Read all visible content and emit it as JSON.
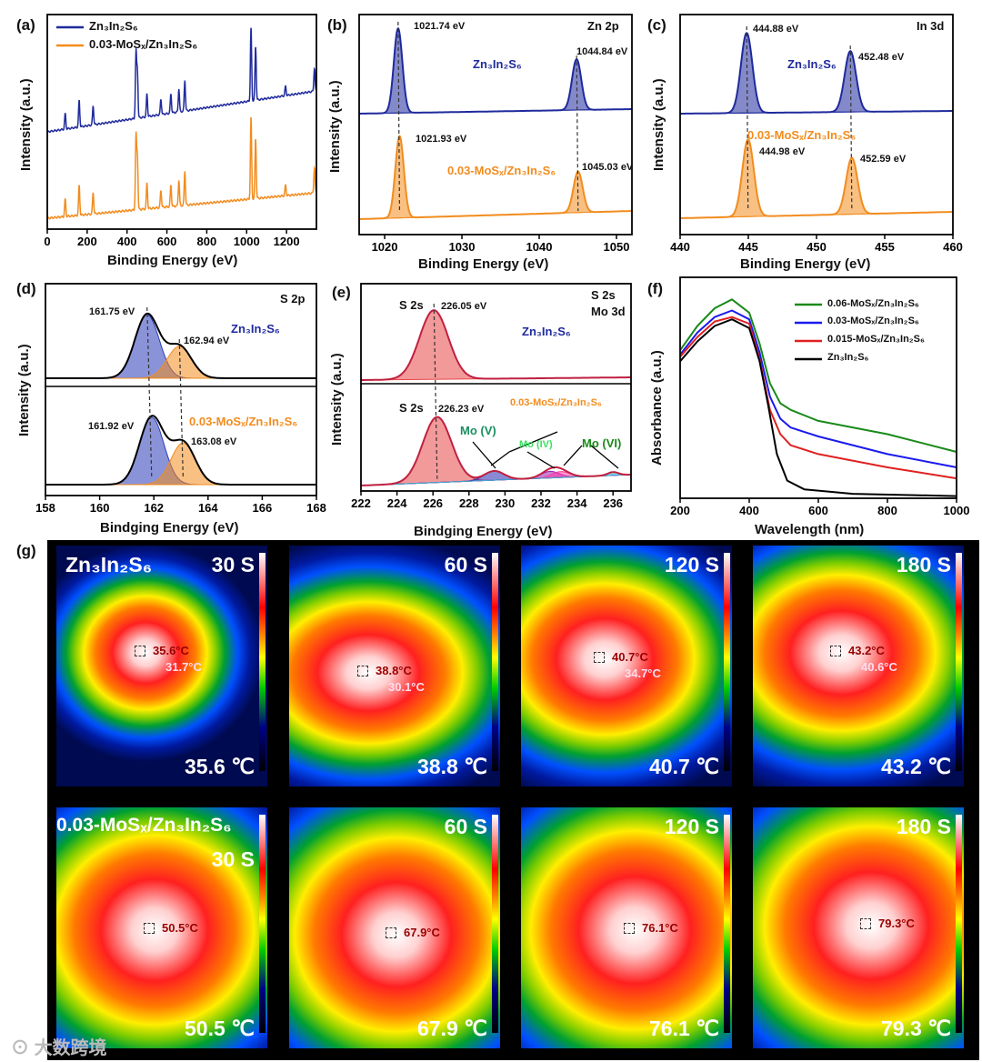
{
  "colors": {
    "navy": "#1f2a9c",
    "orange": "#f28c1e",
    "red": "#e02020",
    "green": "#1a8a1a",
    "blue": "#1a1aee",
    "black": "#000000"
  },
  "panels": {
    "a": {
      "label": "(a)",
      "legend": [
        "Zn₃In₂S₆",
        "0.03-MoSₓ/Zn₃In₂S₆"
      ]
    },
    "b": {
      "label": "(b)",
      "title": "Zn 2p",
      "top_sample": "Zn₃In₂S₆",
      "bottom_sample": "0.03-MoSₓ/Zn₃In₂S₆",
      "peaks_top": [
        "1021.74 eV",
        "1044.84 eV"
      ],
      "peaks_bottom": [
        "1021.93 eV",
        "1045.03 eV"
      ]
    },
    "c": {
      "label": "(c)",
      "title": "In 3d",
      "top_sample": "Zn₃In₂S₆",
      "bottom_sample": "0.03-MoSₓ/Zn₃In₂S₆",
      "peaks_top": [
        "444.88 eV",
        "452.48 eV"
      ],
      "peaks_bottom": [
        "444.98 eV",
        "452.59 eV"
      ]
    },
    "d": {
      "label": "(d)",
      "title": "S 2p",
      "top_sample": "Zn₃In₂S₆",
      "bottom_sample": "0.03-MoSₓ/Zn₃In₂S₆",
      "peaks_top": [
        "161.75 eV",
        "162.94 eV"
      ],
      "peaks_bottom": [
        "161.92 eV",
        "163.08 eV"
      ]
    },
    "e": {
      "label": "(e)",
      "title1": "S 2s",
      "title2": "Mo 3d",
      "top_sample": "Zn₃In₂S₆",
      "bottom_sample": "0.03-MoSₓ/Zn₃In₂S₆",
      "s2s": "S 2s",
      "peaks_top": [
        "226.05 eV"
      ],
      "peaks_bottom": [
        "226.23 eV"
      ],
      "mo": [
        "Mo (V)",
        "Mo (IV)",
        "Mo (VI)"
      ]
    },
    "f": {
      "label": "(f)",
      "legend": [
        "0.06-MoSₓ/Zn₃In₂S₆",
        "0.03-MoSₓ/Zn₃In₂S₆",
        "0.015-MoSₓ/Zn₃In₂S₆",
        "Zn₃In₂S₆"
      ]
    },
    "g": {
      "label": "(g)"
    }
  },
  "chart_data": [
    {
      "id": "a",
      "type": "line",
      "xlabel": "Binding Energy (eV)",
      "ylabel": "Intensity (a.u.)",
      "xlim": [
        0,
        1350
      ],
      "xticks": [
        0,
        200,
        400,
        600,
        800,
        1000,
        1200
      ],
      "series": [
        {
          "name": "Zn₃In₂S₆",
          "color": "#1f2a9c"
        },
        {
          "name": "0.03-MoSₓ/Zn₃In₂S₆",
          "color": "#f28c1e"
        }
      ],
      "peaks": [
        [
          90,
          0.2
        ],
        [
          160,
          0.35
        ],
        [
          230,
          0.25
        ],
        [
          445,
          0.85
        ],
        [
          452,
          0.6
        ],
        [
          500,
          0.3
        ],
        [
          570,
          0.2
        ],
        [
          620,
          0.25
        ],
        [
          660,
          0.3
        ],
        [
          690,
          0.4
        ],
        [
          1022,
          0.95
        ],
        [
          1045,
          0.7
        ],
        [
          1195,
          0.12
        ],
        [
          1340,
          0.3
        ]
      ]
    },
    {
      "id": "b",
      "type": "line",
      "xlabel": "Binding Energy (eV)",
      "ylabel": "Intensity (a.u.)",
      "xlim": [
        1016.7,
        1052
      ],
      "xticks": [
        1020,
        1030,
        1040,
        1050
      ],
      "spectra": [
        {
          "name": "Zn₃In₂S₆",
          "color": "#1f2a9c",
          "peaks": [
            [
              1021.74,
              1.0,
              0.55
            ],
            [
              1044.84,
              0.6,
              0.6
            ]
          ]
        },
        {
          "name": "0.03-MoSₓ/Zn₃In₂S₆",
          "color": "#f28c1e",
          "peaks": [
            [
              1021.93,
              1.0,
              0.55
            ],
            [
              1045.03,
              0.5,
              0.6
            ]
          ]
        }
      ]
    },
    {
      "id": "c",
      "type": "line",
      "xlabel": "Binding Energy (eV)",
      "ylabel": "Intensity (a.u.)",
      "xlim": [
        440,
        460
      ],
      "xticks": [
        440,
        445,
        450,
        455,
        460
      ],
      "spectra": [
        {
          "name": "Zn₃In₂S₆",
          "color": "#1f2a9c",
          "peaks": [
            [
              444.88,
              1.0,
              0.42
            ],
            [
              452.48,
              0.76,
              0.42
            ]
          ]
        },
        {
          "name": "0.03-MoSₓ/Zn₃In₂S₆",
          "color": "#f28c1e",
          "peaks": [
            [
              444.98,
              1.0,
              0.42
            ],
            [
              452.59,
              0.73,
              0.42
            ]
          ]
        }
      ]
    },
    {
      "id": "d",
      "type": "line",
      "xlabel": "Bindging Energy (eV)",
      "ylabel": "Intensity (a.u.)",
      "xlim": [
        158,
        168
      ],
      "xticks": [
        158,
        160,
        162,
        164,
        166,
        168
      ],
      "spectra": [
        {
          "name": "Zn₃In₂S₆",
          "peaks": [
            [
              161.75,
              1.0,
              0.45,
              "#2b3bb8"
            ],
            [
              162.94,
              0.5,
              0.45,
              "#f28c1e"
            ]
          ]
        },
        {
          "name": "0.03-MoSₓ/Zn₃In₂S₆",
          "peaks": [
            [
              161.92,
              1.0,
              0.45,
              "#2b3bb8"
            ],
            [
              163.08,
              0.62,
              0.45,
              "#f28c1e"
            ]
          ]
        }
      ]
    },
    {
      "id": "e",
      "type": "line",
      "xlabel": "Bindging Energy (eV)",
      "ylabel": "Intensity (a.u.)",
      "xlim": [
        222,
        237
      ],
      "xticks": [
        222,
        224,
        226,
        228,
        230,
        232,
        234,
        236
      ],
      "spectra": [
        {
          "name": "Zn₃In₂S₆",
          "peaks": [
            [
              226.05,
              1.0,
              0.8,
              "#e84545"
            ]
          ]
        },
        {
          "name": "0.03-MoSₓ/Zn₃In₂S₆",
          "peaks": [
            [
              226.23,
              1.0,
              0.8,
              "#e84545"
            ],
            [
              229.4,
              0.14,
              0.55,
              "#2a2ab0"
            ],
            [
              232.5,
              0.1,
              0.5,
              "#9b1bb0"
            ],
            [
              233.1,
              0.09,
              0.5,
              "#ff3aa0"
            ],
            [
              236.0,
              0.05,
              0.3,
              "#30b0d0"
            ]
          ]
        }
      ]
    },
    {
      "id": "f",
      "type": "line",
      "xlabel": "Wavelength (nm)",
      "ylabel": "Absorbance (a.u.)",
      "xlim": [
        200,
        1000
      ],
      "xticks": [
        200,
        400,
        600,
        800,
        1000
      ],
      "series": [
        {
          "name": "0.06-MoSₓ/Zn₃In₂S₆",
          "color": "#1a8a1a",
          "points": [
            [
              200,
              0.67
            ],
            [
              250,
              0.78
            ],
            [
              300,
              0.86
            ],
            [
              350,
              0.9
            ],
            [
              400,
              0.84
            ],
            [
              430,
              0.7
            ],
            [
              460,
              0.52
            ],
            [
              490,
              0.43
            ],
            [
              520,
              0.4
            ],
            [
              600,
              0.35
            ],
            [
              800,
              0.29
            ],
            [
              1000,
              0.21
            ]
          ]
        },
        {
          "name": "0.03-MoSₓ/Zn₃In₂S₆",
          "color": "#1a1aee",
          "points": [
            [
              200,
              0.65
            ],
            [
              250,
              0.75
            ],
            [
              300,
              0.82
            ],
            [
              350,
              0.85
            ],
            [
              400,
              0.81
            ],
            [
              430,
              0.66
            ],
            [
              460,
              0.46
            ],
            [
              490,
              0.36
            ],
            [
              520,
              0.32
            ],
            [
              600,
              0.28
            ],
            [
              800,
              0.2
            ],
            [
              1000,
              0.14
            ]
          ]
        },
        {
          "name": "0.015-MoSₓ/Zn₃In₂S₆",
          "color": "#e02020",
          "points": [
            [
              200,
              0.64
            ],
            [
              250,
              0.73
            ],
            [
              300,
              0.8
            ],
            [
              350,
              0.82
            ],
            [
              400,
              0.79
            ],
            [
              430,
              0.63
            ],
            [
              460,
              0.4
            ],
            [
              490,
              0.29
            ],
            [
              520,
              0.24
            ],
            [
              600,
              0.2
            ],
            [
              800,
              0.14
            ],
            [
              1000,
              0.09
            ]
          ]
        },
        {
          "name": "Zn₃In₂S₆",
          "color": "#000000",
          "points": [
            [
              200,
              0.62
            ],
            [
              250,
              0.71
            ],
            [
              300,
              0.78
            ],
            [
              350,
              0.81
            ],
            [
              400,
              0.77
            ],
            [
              430,
              0.62
            ],
            [
              455,
              0.42
            ],
            [
              480,
              0.2
            ],
            [
              510,
              0.08
            ],
            [
              560,
              0.04
            ],
            [
              700,
              0.02
            ],
            [
              1000,
              0.01
            ]
          ]
        }
      ]
    }
  ],
  "thermal": {
    "rows": [
      {
        "title": "Zn₃In₂S₆",
        "tiles": [
          {
            "time": "30 S",
            "temp": "35.6 ℃",
            "m1": "35.6°C",
            "m2": "31.7°C"
          },
          {
            "time": "60 S",
            "temp": "38.8 ℃",
            "m1": "38.8°C",
            "m2": "30.1°C"
          },
          {
            "time": "120 S",
            "temp": "40.7 ℃",
            "m1": "40.7°C",
            "m2": "34.7°C"
          },
          {
            "time": "180 S",
            "temp": "43.2 ℃",
            "m1": "43.2°C",
            "m2": "40.6°C"
          }
        ]
      },
      {
        "title": "0.03-MoSₓ/Zn₃In₂S₆",
        "tiles": [
          {
            "time": "30 S",
            "temp": "50.5 ℃",
            "m1": "50.5°C"
          },
          {
            "time": "60 S",
            "temp": "67.9 ℃",
            "m1": "67.9°C"
          },
          {
            "time": "120 S",
            "temp": "76.1 ℃",
            "m1": "76.1°C"
          },
          {
            "time": "180 S",
            "temp": "79.3 ℃",
            "m1": "79.3°C"
          }
        ]
      }
    ]
  },
  "watermark": "大数跨境"
}
